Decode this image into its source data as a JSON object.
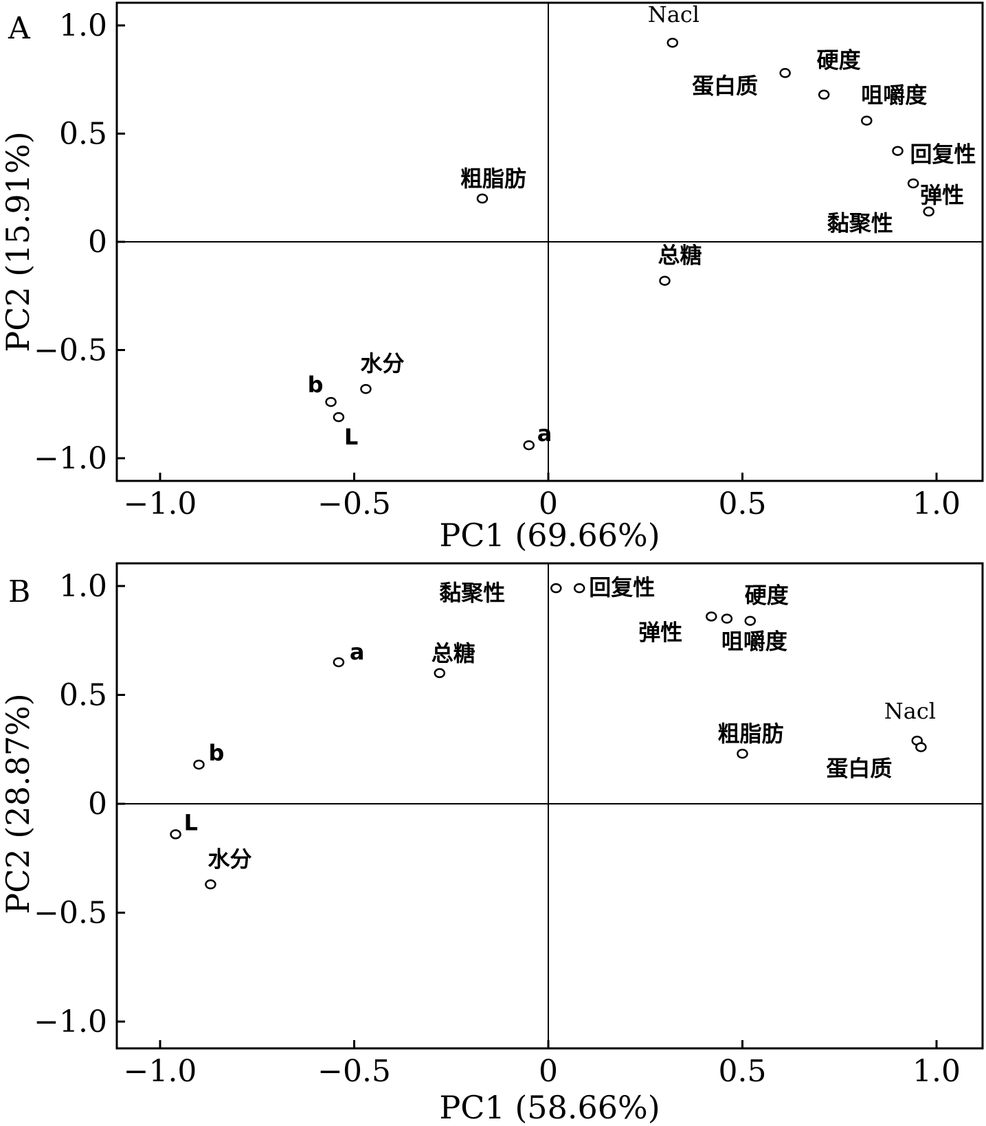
{
  "chart_data": [
    {
      "type": "scatter",
      "panel_label": "A",
      "xlabel": "PC1 (69.66%)",
      "ylabel": "PC2 (15.91%)",
      "xlim": [
        -1.1,
        1.1
      ],
      "ylim": [
        -1.1,
        1.1
      ],
      "xticks": [
        -1.0,
        -0.5,
        0,
        0.5,
        1.0
      ],
      "yticks": [
        -1.0,
        -0.5,
        0,
        0.5,
        1.0
      ],
      "xtick_labels": [
        "−1.0",
        "−0.5",
        "0",
        "0.5",
        "1.0"
      ],
      "ytick_labels": [
        "−1.0",
        "−0.5",
        "0",
        "0.5",
        "1.0"
      ],
      "grid": false,
      "zero_lines": true,
      "points": [
        {
          "label": "Nacl",
          "x": 0.32,
          "y": 0.92
        },
        {
          "label": "硬度",
          "x": 0.61,
          "y": 0.78
        },
        {
          "label": "蛋白质",
          "x": 0.71,
          "y": 0.68
        },
        {
          "label": "咀嚼度",
          "x": 0.82,
          "y": 0.56
        },
        {
          "label": "回复性",
          "x": 0.9,
          "y": 0.42
        },
        {
          "label": "弹性",
          "x": 0.94,
          "y": 0.27
        },
        {
          "label": "黏聚性",
          "x": 0.98,
          "y": 0.14
        },
        {
          "label": "粗脂肪",
          "x": -0.17,
          "y": 0.2
        },
        {
          "label": "总糖",
          "x": 0.3,
          "y": -0.18
        },
        {
          "label": "水分",
          "x": -0.47,
          "y": -0.68
        },
        {
          "label": "b",
          "x": -0.56,
          "y": -0.74
        },
        {
          "label": "L",
          "x": -0.54,
          "y": -0.81
        },
        {
          "label": "a",
          "x": -0.05,
          "y": -0.94
        }
      ]
    },
    {
      "type": "scatter",
      "panel_label": "B",
      "xlabel": "PC1 (58.66%)",
      "ylabel": "PC2 (28.87%)",
      "xlim": [
        -1.1,
        1.1
      ],
      "ylim": [
        -1.1,
        1.1
      ],
      "xticks": [
        -1.0,
        -0.5,
        0,
        0.5,
        1.0
      ],
      "yticks": [
        -1.0,
        -0.5,
        0,
        0.5,
        1.0
      ],
      "xtick_labels": [
        "−1.0",
        "−0.5",
        "0",
        "0.5",
        "1.0"
      ],
      "ytick_labels": [
        "−1.0",
        "−0.5",
        "0",
        "0.5",
        "1.0"
      ],
      "grid": false,
      "zero_lines": true,
      "points": [
        {
          "label": "黏聚性",
          "x": 0.02,
          "y": 0.99
        },
        {
          "label": "回复性",
          "x": 0.08,
          "y": 0.99
        },
        {
          "label": "硬度",
          "x": 0.52,
          "y": 0.84
        },
        {
          "label": "弹性",
          "x": 0.42,
          "y": 0.86
        },
        {
          "label": "咀嚼度",
          "x": 0.46,
          "y": 0.85
        },
        {
          "label": "a",
          "x": -0.54,
          "y": 0.65
        },
        {
          "label": "总糖",
          "x": -0.28,
          "y": 0.6
        },
        {
          "label": "Nacl",
          "x": 0.95,
          "y": 0.29
        },
        {
          "label": "蛋白质",
          "x": 0.96,
          "y": 0.26
        },
        {
          "label": "粗脂肪",
          "x": 0.5,
          "y": 0.23
        },
        {
          "label": "b",
          "x": -0.9,
          "y": 0.18
        },
        {
          "label": "L",
          "x": -0.96,
          "y": -0.14
        },
        {
          "label": "水分",
          "x": -0.87,
          "y": -0.37
        }
      ]
    }
  ]
}
